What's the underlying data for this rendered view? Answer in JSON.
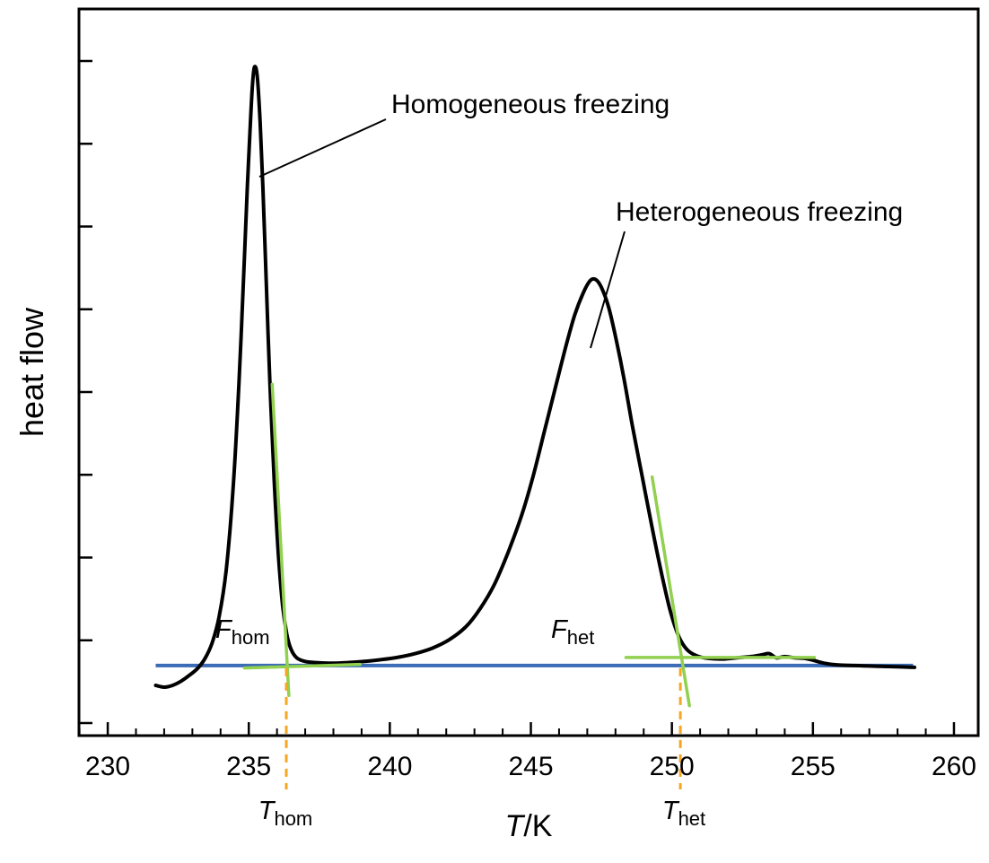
{
  "figure": {
    "background": "#ffffff"
  },
  "chart_data": {
    "type": "line",
    "title": "",
    "ylabel": "heat flow",
    "xlabel": {
      "italic": "T",
      "rest": "/K"
    },
    "xlim": [
      228.98,
      260.86
    ],
    "ylim": [
      -0.117,
      1.097
    ],
    "grid": false,
    "legend": "none",
    "x_ticks": {
      "majors": [
        230,
        235,
        240,
        245,
        250,
        255,
        260
      ],
      "labels": [
        "230",
        "235",
        "240",
        "245",
        "250",
        "255",
        "260"
      ],
      "minor_step": 1
    },
    "y_ticks": {
      "count": 9,
      "labels": []
    },
    "series": [
      {
        "name": "heat-flow-curve",
        "color": "#000000",
        "points": [
          [
            231.7,
            -0.033
          ],
          [
            232.0,
            -0.036
          ],
          [
            232.3,
            -0.033
          ],
          [
            232.6,
            -0.026
          ],
          [
            232.9,
            -0.016
          ],
          [
            233.2,
            -0.004
          ],
          [
            233.45,
            0.012
          ],
          [
            233.7,
            0.038
          ],
          [
            233.95,
            0.082
          ],
          [
            234.2,
            0.16
          ],
          [
            234.45,
            0.3
          ],
          [
            234.65,
            0.47
          ],
          [
            234.8,
            0.63
          ],
          [
            234.95,
            0.8
          ],
          [
            235.05,
            0.9
          ],
          [
            235.13,
            0.97
          ],
          [
            235.2,
            1.0
          ],
          [
            235.3,
            0.985
          ],
          [
            235.4,
            0.91
          ],
          [
            235.5,
            0.8
          ],
          [
            235.62,
            0.64
          ],
          [
            235.75,
            0.47
          ],
          [
            235.9,
            0.31
          ],
          [
            236.05,
            0.185
          ],
          [
            236.2,
            0.1
          ],
          [
            236.35,
            0.052
          ],
          [
            236.5,
            0.027
          ],
          [
            236.7,
            0.013
          ],
          [
            237.0,
            0.007
          ],
          [
            237.4,
            0.005
          ],
          [
            237.9,
            0.004
          ],
          [
            238.5,
            0.005
          ],
          [
            239.1,
            0.007
          ],
          [
            239.7,
            0.01
          ],
          [
            240.3,
            0.014
          ],
          [
            240.9,
            0.02
          ],
          [
            241.5,
            0.029
          ],
          [
            242.1,
            0.043
          ],
          [
            242.7,
            0.065
          ],
          [
            243.2,
            0.095
          ],
          [
            243.7,
            0.135
          ],
          [
            244.2,
            0.19
          ],
          [
            244.7,
            0.255
          ],
          [
            245.1,
            0.32
          ],
          [
            245.5,
            0.395
          ],
          [
            245.9,
            0.47
          ],
          [
            246.25,
            0.535
          ],
          [
            246.55,
            0.585
          ],
          [
            246.85,
            0.622
          ],
          [
            247.1,
            0.643
          ],
          [
            247.3,
            0.645
          ],
          [
            247.5,
            0.632
          ],
          [
            247.75,
            0.6
          ],
          [
            248.0,
            0.55
          ],
          [
            248.3,
            0.48
          ],
          [
            248.6,
            0.4
          ],
          [
            248.95,
            0.315
          ],
          [
            249.3,
            0.23
          ],
          [
            249.65,
            0.15
          ],
          [
            249.95,
            0.09
          ],
          [
            250.25,
            0.048
          ],
          [
            250.55,
            0.026
          ],
          [
            250.9,
            0.016
          ],
          [
            251.3,
            0.012
          ],
          [
            251.8,
            0.011
          ],
          [
            252.3,
            0.013
          ],
          [
            252.8,
            0.015
          ],
          [
            253.2,
            0.018
          ],
          [
            253.45,
            0.02
          ],
          [
            253.7,
            0.013
          ],
          [
            254.0,
            0.015
          ],
          [
            254.35,
            0.013
          ],
          [
            254.7,
            0.012
          ],
          [
            255.0,
            0.009
          ],
          [
            255.4,
            0.004
          ],
          [
            255.9,
            0.001
          ],
          [
            256.5,
            0.0
          ],
          [
            257.2,
            -0.001
          ],
          [
            258.0,
            -0.002
          ],
          [
            258.6,
            -0.003
          ]
        ]
      }
    ],
    "baseline": {
      "color": "#3b6cb5",
      "x1": 231.7,
      "x2": 258.55,
      "y": 0
    },
    "tangents": {
      "color": "#92d050",
      "segments": [
        {
          "x1": 235.83,
          "y1": 0.47,
          "x2": 236.42,
          "y2": -0.05
        },
        {
          "x1": 234.85,
          "y1": -0.004,
          "x2": 238.95,
          "y2": 0.002
        },
        {
          "x1": 249.3,
          "y1": 0.315,
          "x2": 250.62,
          "y2": -0.067
        },
        {
          "x1": 248.37,
          "y1": 0.0135,
          "x2": 255.05,
          "y2": 0.0135
        }
      ]
    },
    "onset_markers": {
      "color": "#f5a623",
      "items": [
        {
          "T": 236.33,
          "label_main": "T",
          "label_sub": "hom"
        },
        {
          "T": 250.3,
          "label_main": "T",
          "label_sub": "het"
        }
      ]
    },
    "area_labels": [
      {
        "main": "F",
        "sub": "hom"
      },
      {
        "main": "F",
        "sub": "het"
      }
    ],
    "annotations": [
      {
        "text": "Homogeneous freezing",
        "line": [
          430,
          133,
          289,
          197
        ]
      },
      {
        "text": "Heterogeneous freezing",
        "line": [
          696,
          258,
          658,
          388
        ]
      }
    ]
  }
}
